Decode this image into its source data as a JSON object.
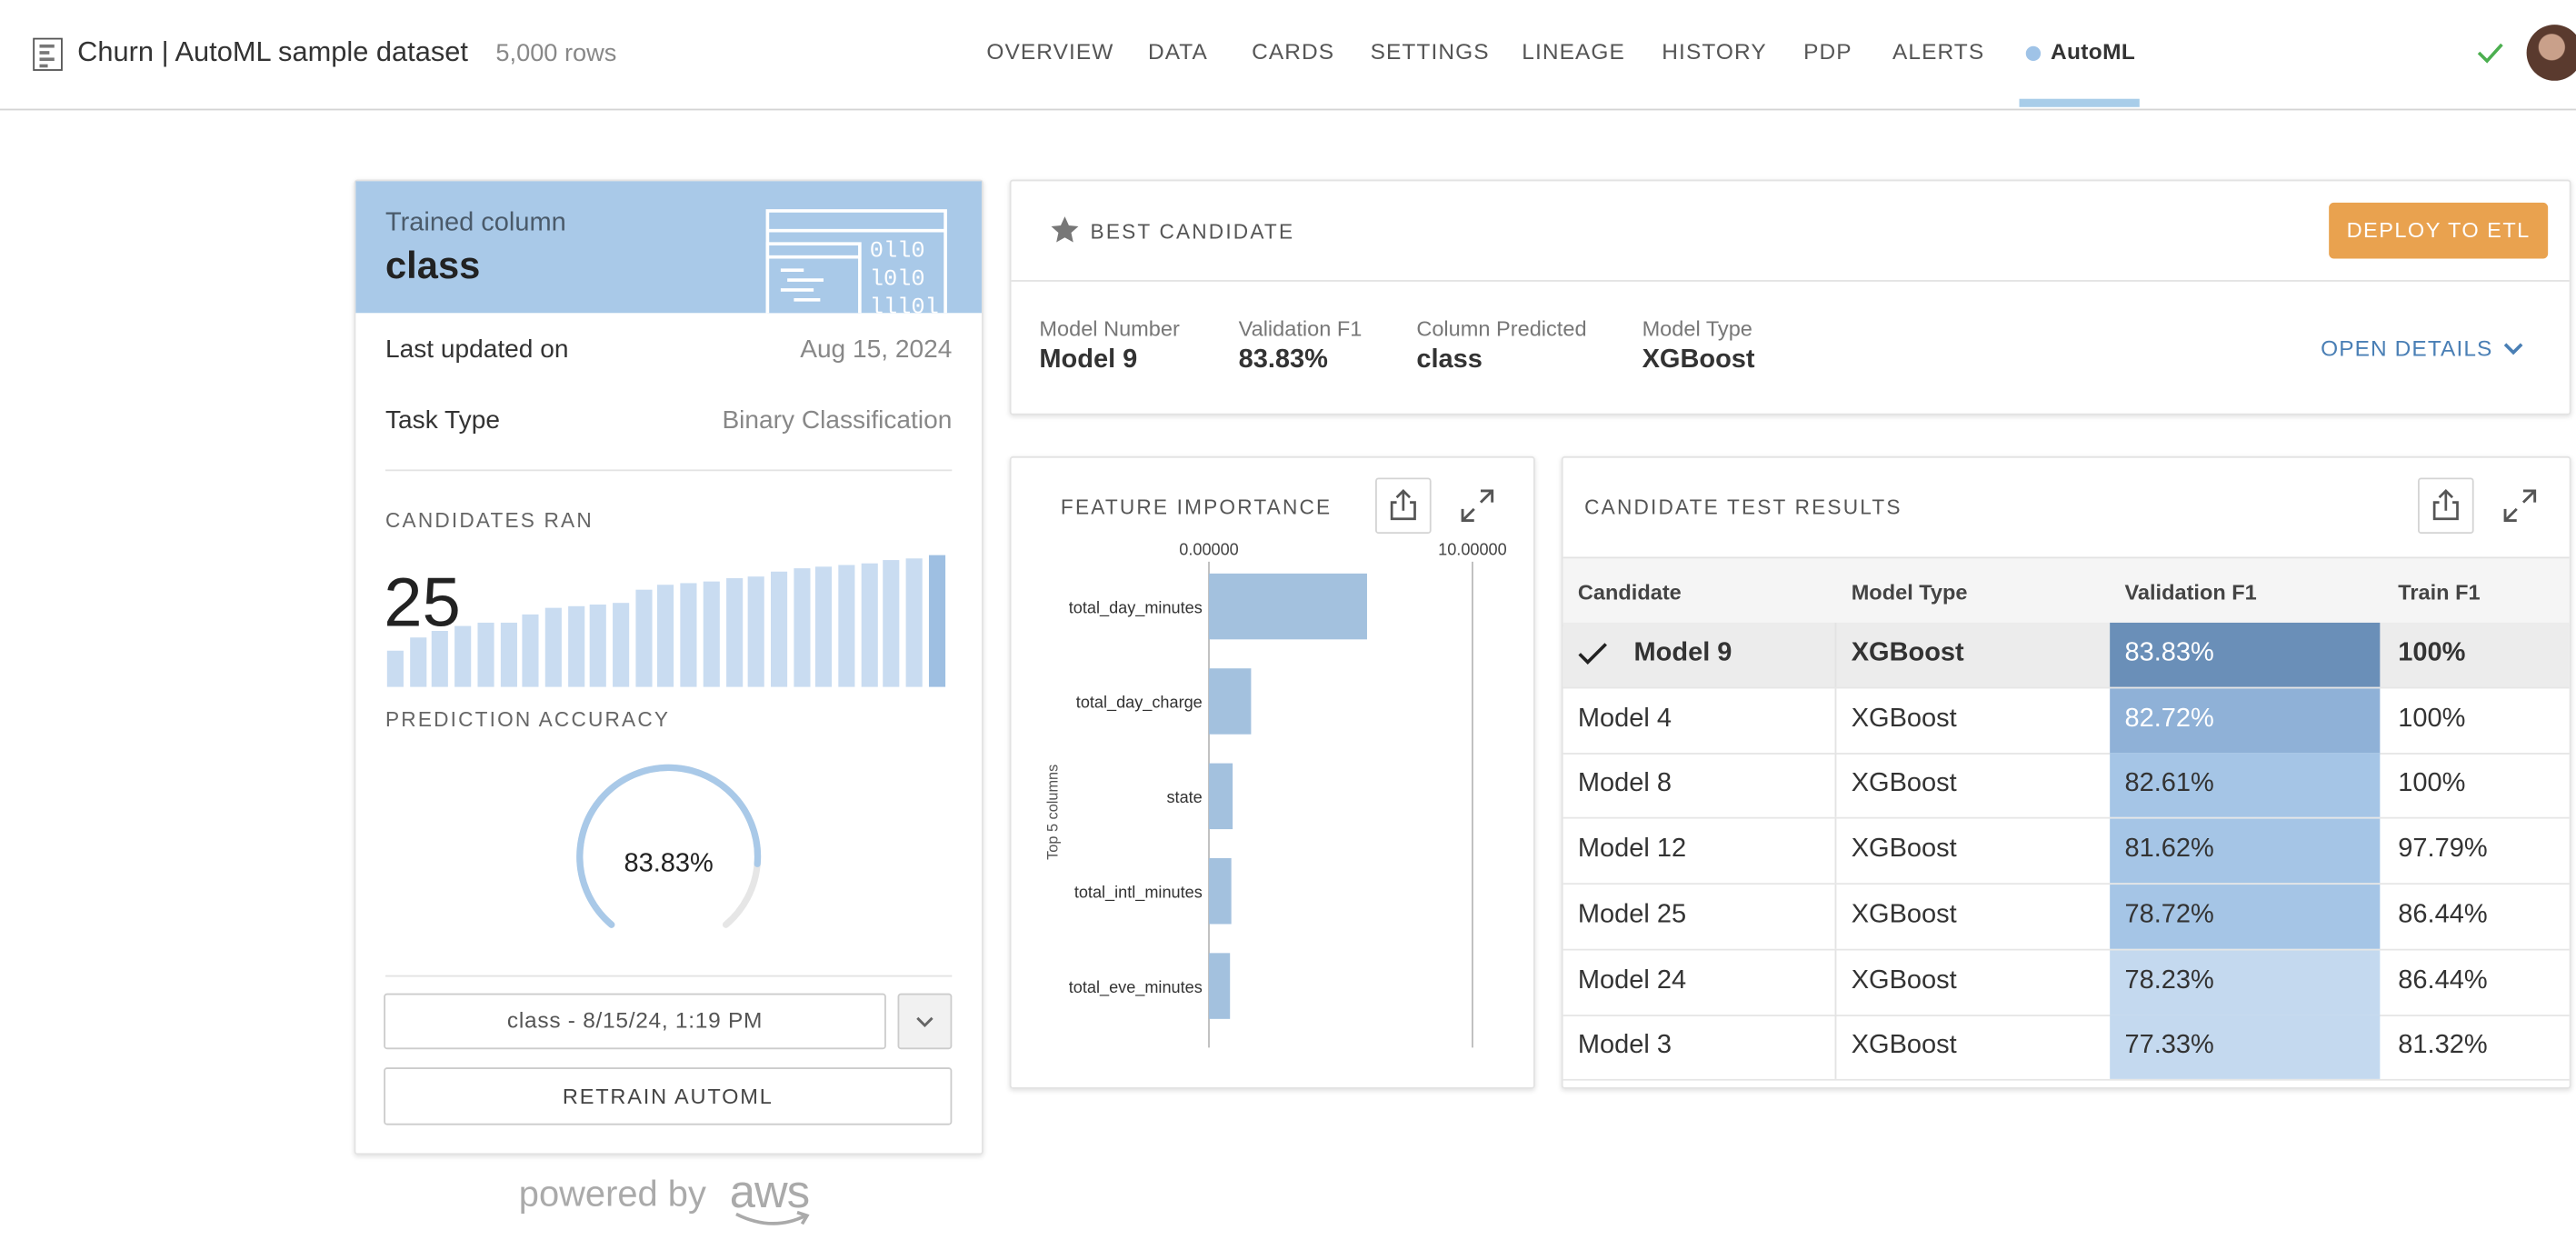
{
  "header": {
    "dataset_title": "Churn | AutoML sample dataset",
    "row_count": "5,000 rows",
    "nav": [
      "OVERVIEW",
      "DATA",
      "CARDS",
      "SETTINGS",
      "LINEAGE",
      "HISTORY",
      "PDP",
      "ALERTS",
      "AutoML"
    ],
    "active_tab": "AutoML"
  },
  "summary": {
    "trained_column_label": "Trained column",
    "trained_column": "class",
    "last_updated_label": "Last updated on",
    "last_updated": "Aug 15, 2024",
    "task_type_label": "Task Type",
    "task_type": "Binary Classification",
    "candidates_label": "CANDIDATES RAN",
    "candidates_count": "25",
    "candidates_sparkline": [
      0.27,
      0.38,
      0.43,
      0.46,
      0.49,
      0.49,
      0.55,
      0.6,
      0.61,
      0.62,
      0.64,
      0.74,
      0.78,
      0.79,
      0.8,
      0.82,
      0.84,
      0.88,
      0.9,
      0.91,
      0.93,
      0.94,
      0.96,
      0.98,
      1.0
    ],
    "accuracy_label": "PREDICTION ACCURACY",
    "accuracy": "83.83%",
    "accuracy_fraction": 0.8383,
    "selected_run": "class - 8/15/24, 1:19 PM",
    "retrain_label": "RETRAIN AUTOML",
    "powered_by": "powered by",
    "aws_word": "aws"
  },
  "best_candidate": {
    "title": "BEST CANDIDATE",
    "deploy_label": "DEPLOY TO ETL",
    "metrics": [
      {
        "label": "Model Number",
        "value": "Model 9"
      },
      {
        "label": "Validation F1",
        "value": "83.83%"
      },
      {
        "label": "Column Predicted",
        "value": "class"
      },
      {
        "label": "Model Type",
        "value": "XGBoost"
      }
    ],
    "open_details_label": "OPEN DETAILS"
  },
  "feature_importance": {
    "title": "FEATURE IMPORTANCE",
    "chart_data": {
      "type": "bar",
      "orientation": "horizontal",
      "categories": [
        "total_day_minutes",
        "total_day_charge",
        "state",
        "total_intl_minutes",
        "total_eve_minutes"
      ],
      "values": [
        6.0,
        1.6,
        0.9,
        0.85,
        0.8
      ],
      "xlim": [
        0,
        10
      ],
      "tick_labels": [
        "0.00000",
        "10.00000"
      ],
      "ylabel": "Top 5 columns",
      "color": "#a3c1de"
    }
  },
  "results": {
    "title": "CANDIDATE TEST RESULTS",
    "columns": [
      "Candidate",
      "Model Type",
      "Validation F1",
      "Train F1"
    ],
    "rows": [
      {
        "candidate": "Model 9",
        "model_type": "XGBoost",
        "validation_f1": "83.83%",
        "train_f1": "100%",
        "selected": true,
        "shade": "#6a8fb8",
        "text_color": "#ffffff"
      },
      {
        "candidate": "Model 4",
        "model_type": "XGBoost",
        "validation_f1": "82.72%",
        "train_f1": "100%",
        "selected": false,
        "shade": "#8fb1d7",
        "text_color": "#ffffff"
      },
      {
        "candidate": "Model 8",
        "model_type": "XGBoost",
        "validation_f1": "82.61%",
        "train_f1": "100%",
        "selected": false,
        "shade": "#a5c5e6",
        "text_color": "#333333"
      },
      {
        "candidate": "Model 12",
        "model_type": "XGBoost",
        "validation_f1": "81.62%",
        "train_f1": "97.79%",
        "selected": false,
        "shade": "#a5c5e6",
        "text_color": "#333333"
      },
      {
        "candidate": "Model 25",
        "model_type": "XGBoost",
        "validation_f1": "78.72%",
        "train_f1": "86.44%",
        "selected": false,
        "shade": "#a5c5e6",
        "text_color": "#333333"
      },
      {
        "candidate": "Model 24",
        "model_type": "XGBoost",
        "validation_f1": "78.23%",
        "train_f1": "86.44%",
        "selected": false,
        "shade": "#c4d9ef",
        "text_color": "#333333"
      },
      {
        "candidate": "Model 3",
        "model_type": "XGBoost",
        "validation_f1": "77.33%",
        "train_f1": "81.32%",
        "selected": false,
        "shade": "#c4d9ef",
        "text_color": "#333333"
      }
    ]
  },
  "colors": {
    "accent_blue": "#a9c9e8",
    "deploy_orange": "#e9a24f",
    "link_blue": "#4a7fb5",
    "status_green": "#4caf50"
  }
}
